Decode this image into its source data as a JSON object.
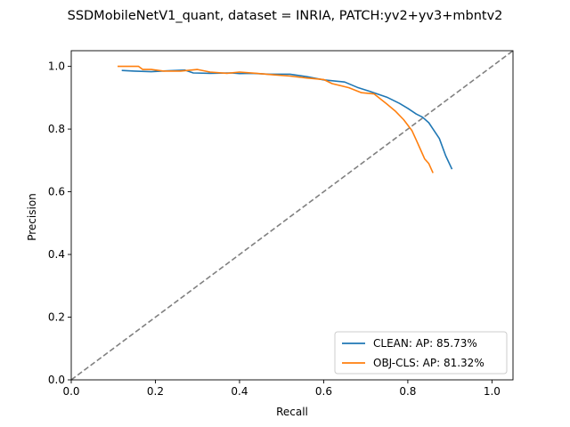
{
  "chart_data": {
    "type": "line",
    "title": "SSDMobileNetV1_quant, dataset = INRIA, PATCH:yv2+yv3+mbntv2",
    "xlabel": "Recall",
    "ylabel": "Precision",
    "xlim": [
      0,
      1.05
    ],
    "ylim": [
      0,
      1.05
    ],
    "xticks": [
      0.0,
      0.2,
      0.4,
      0.6,
      0.8,
      1.0
    ],
    "yticks": [
      0.0,
      0.2,
      0.4,
      0.6,
      0.8,
      1.0
    ],
    "xtick_labels": [
      "0.0",
      "0.2",
      "0.4",
      "0.6",
      "0.8",
      "1.0"
    ],
    "ytick_labels": [
      "0.0",
      "0.2",
      "0.4",
      "0.6",
      "0.8",
      "1.0"
    ],
    "grid": false,
    "legend_position": "lower-right",
    "diagonal": {
      "x": [
        0,
        1.05
      ],
      "y": [
        0,
        1.05
      ],
      "color": "#808080",
      "style": "dashed"
    },
    "series": [
      {
        "name": "CLEAN: AP: 85.73%",
        "color": "#1f77b4",
        "x": [
          0.12,
          0.15,
          0.19,
          0.23,
          0.27,
          0.29,
          0.33,
          0.38,
          0.4,
          0.43,
          0.47,
          0.52,
          0.56,
          0.6,
          0.65,
          0.68,
          0.71,
          0.75,
          0.78,
          0.8,
          0.82,
          0.835,
          0.85,
          0.86,
          0.875,
          0.89,
          0.905
        ],
        "y": [
          0.987,
          0.985,
          0.983,
          0.986,
          0.988,
          0.979,
          0.978,
          0.979,
          0.977,
          0.978,
          0.975,
          0.975,
          0.967,
          0.957,
          0.95,
          0.933,
          0.92,
          0.902,
          0.882,
          0.866,
          0.848,
          0.838,
          0.82,
          0.8,
          0.77,
          0.715,
          0.672
        ]
      },
      {
        "name": "OBJ-CLS: AP: 81.32%",
        "color": "#ff7f0e",
        "x": [
          0.11,
          0.16,
          0.17,
          0.19,
          0.22,
          0.26,
          0.3,
          0.33,
          0.37,
          0.4,
          0.44,
          0.48,
          0.52,
          0.56,
          0.6,
          0.62,
          0.66,
          0.69,
          0.72,
          0.75,
          0.77,
          0.79,
          0.81,
          0.82,
          0.83,
          0.84,
          0.85,
          0.86
        ],
        "y": [
          1.0,
          1.0,
          0.99,
          0.99,
          0.985,
          0.985,
          0.99,
          0.982,
          0.978,
          0.982,
          0.978,
          0.973,
          0.969,
          0.963,
          0.958,
          0.945,
          0.932,
          0.916,
          0.912,
          0.88,
          0.858,
          0.83,
          0.795,
          0.765,
          0.735,
          0.705,
          0.69,
          0.66
        ]
      }
    ]
  }
}
